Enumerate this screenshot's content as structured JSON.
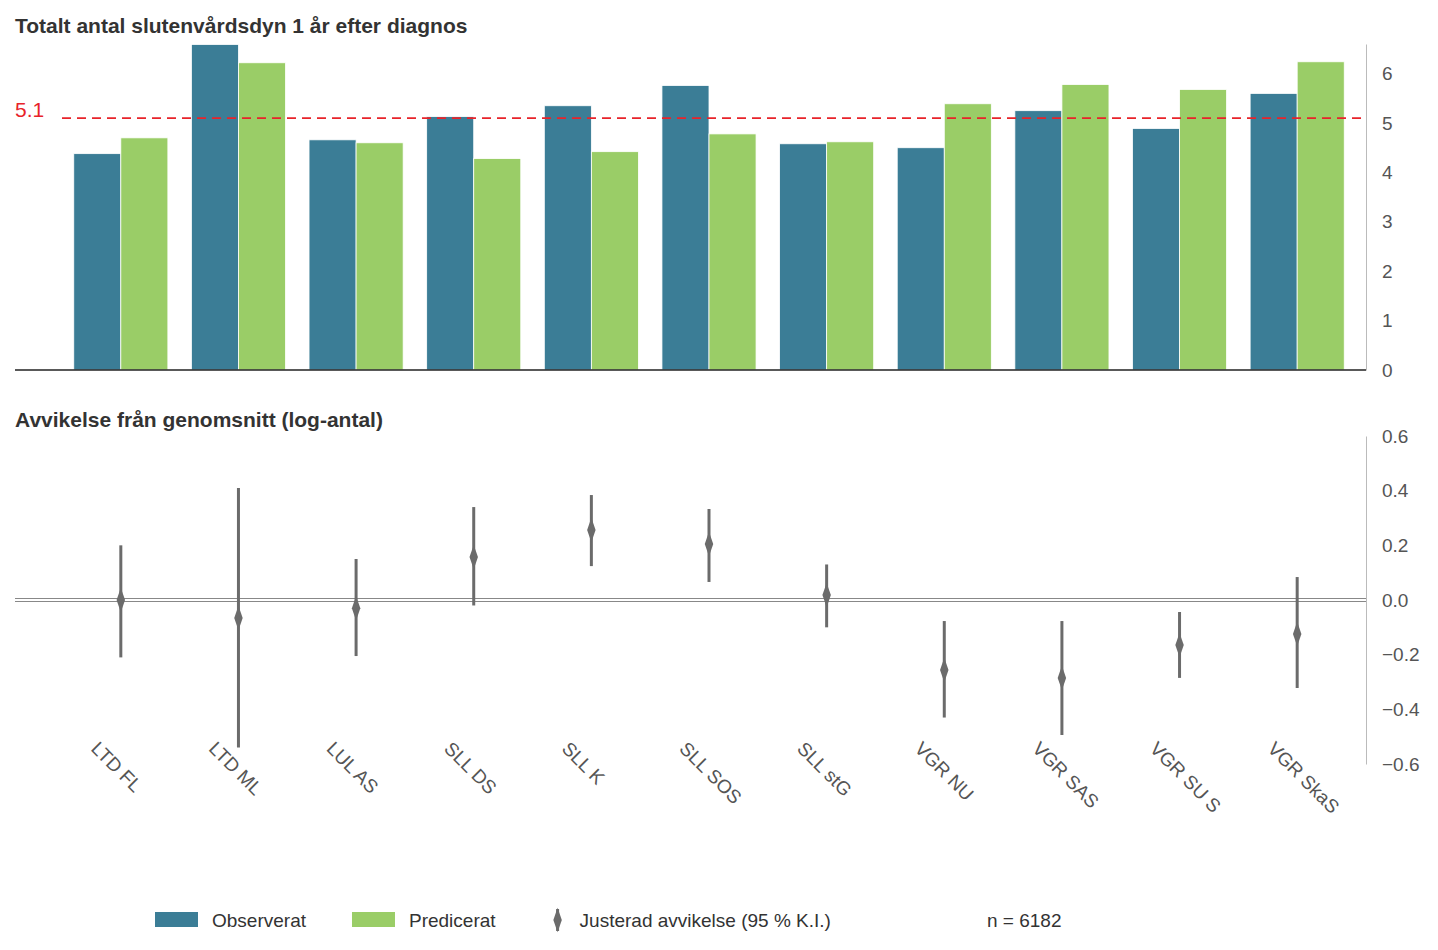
{
  "chart_data": [
    {
      "type": "bar",
      "title": "Totalt antal slutenvårdsdyn 1 år efter diagnos",
      "categories": [
        "LTD FL",
        "LTD ML",
        "LUL AS",
        "SLL DS",
        "SLL K",
        "SLL SOS",
        "SLL stG",
        "VGR NU",
        "VGR SAS",
        "VGR SU S",
        "VGR SkaS"
      ],
      "series": [
        {
          "name": "Observerat",
          "color": "#3b7d96",
          "values": [
            4.38,
            6.59,
            4.66,
            5.13,
            5.35,
            5.76,
            4.58,
            4.5,
            5.25,
            4.89,
            5.6
          ]
        },
        {
          "name": "Predicerat",
          "color": "#9acd67",
          "values": [
            4.7,
            6.22,
            4.6,
            4.28,
            4.42,
            4.78,
            4.62,
            5.39,
            5.78,
            5.68,
            6.24
          ]
        }
      ],
      "ylim": [
        0,
        6.6
      ],
      "yticks": [
        0,
        1,
        2,
        3,
        4,
        5,
        6
      ],
      "reference_line": 5.1,
      "tick_labels": "y",
      "legend": "bottom"
    },
    {
      "type": "errorbar",
      "title": "Avvikelse från genomsnitt (log-antal)",
      "categories": [
        "LTD FL",
        "LTD ML",
        "LUL AS",
        "SLL DS",
        "SLL K",
        "SLL SOS",
        "SLL stG",
        "VGR NU",
        "VGR SAS",
        "VGR SU S",
        "VGR SkaS"
      ],
      "series": [
        {
          "name": "Justerad avvikelse (95 % K.I.)",
          "color": "#6b6b6b",
          "marker": "diamond",
          "values": [
            0.0,
            -0.066,
            -0.03,
            0.157,
            0.256,
            0.205,
            0.018,
            -0.256,
            -0.285,
            -0.165,
            -0.124
          ],
          "ci_low": [
            -0.21,
            -0.54,
            -0.205,
            -0.02,
            0.124,
            0.066,
            -0.1,
            -0.43,
            -0.494,
            -0.285,
            -0.322
          ],
          "ci_high": [
            0.2,
            0.41,
            0.15,
            0.34,
            0.384,
            0.333,
            0.13,
            -0.077,
            -0.077,
            -0.044,
            0.084
          ]
        }
      ],
      "ylim": [
        -0.6,
        0.6
      ],
      "yticks": [
        {
          "value": -0.6,
          "label": "−0.6"
        },
        {
          "value": -0.4,
          "label": "−0.4"
        },
        {
          "value": -0.2,
          "label": "−0.2"
        },
        {
          "value": 0,
          "label": "0.0"
        },
        0.2,
        0.4,
        0.6
      ],
      "reference_line": 0,
      "annotation": "n = 6182",
      "legend": "bottom"
    }
  ]
}
